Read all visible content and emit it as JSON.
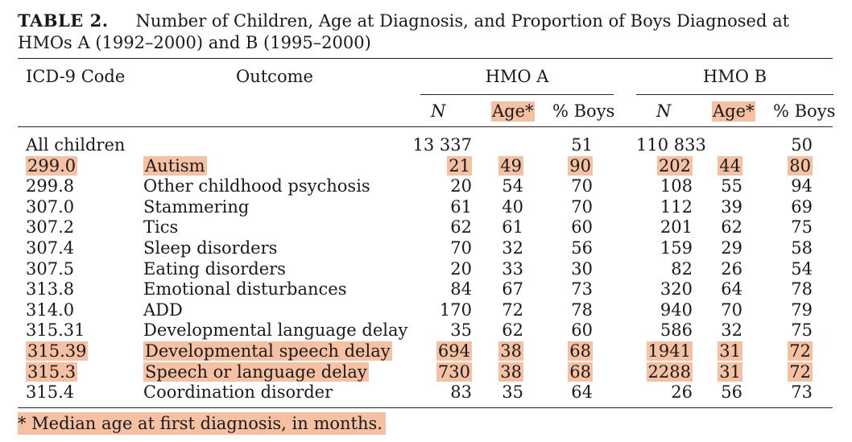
{
  "caption": {
    "label": "TABLE 2.",
    "text": "Number of Children, Age at Diagnosis, and Proportion of Boys Diagnosed at HMOs A (1992–2000) and B (1995–2000)"
  },
  "headers": {
    "code": "ICD-9 Code",
    "outcome": "Outcome",
    "hmo_a": "HMO A",
    "hmo_b": "HMO B",
    "n": "N",
    "age": "Age*",
    "boys": "% Boys"
  },
  "rows": [
    {
      "code": "All children",
      "outcome": "",
      "a_n": "13 337",
      "a_age": "",
      "a_boys": "51",
      "b_n": "110 833",
      "b_age": "",
      "b_boys": "50",
      "hl": false
    },
    {
      "code": "299.0",
      "outcome": "Autism",
      "a_n": "21",
      "a_age": "49",
      "a_boys": "90",
      "b_n": "202",
      "b_age": "44",
      "b_boys": "80",
      "hl": true
    },
    {
      "code": "299.8",
      "outcome": "Other childhood psychosis",
      "a_n": "20",
      "a_age": "54",
      "a_boys": "70",
      "b_n": "108",
      "b_age": "55",
      "b_boys": "94",
      "hl": false
    },
    {
      "code": "307.0",
      "outcome": "Stammering",
      "a_n": "61",
      "a_age": "40",
      "a_boys": "70",
      "b_n": "112",
      "b_age": "39",
      "b_boys": "69",
      "hl": false
    },
    {
      "code": "307.2",
      "outcome": "Tics",
      "a_n": "62",
      "a_age": "61",
      "a_boys": "60",
      "b_n": "201",
      "b_age": "62",
      "b_boys": "75",
      "hl": false
    },
    {
      "code": "307.4",
      "outcome": "Sleep disorders",
      "a_n": "70",
      "a_age": "32",
      "a_boys": "56",
      "b_n": "159",
      "b_age": "29",
      "b_boys": "58",
      "hl": false
    },
    {
      "code": "307.5",
      "outcome": "Eating disorders",
      "a_n": "20",
      "a_age": "33",
      "a_boys": "30",
      "b_n": "82",
      "b_age": "26",
      "b_boys": "54",
      "hl": false
    },
    {
      "code": "313.8",
      "outcome": "Emotional disturbances",
      "a_n": "84",
      "a_age": "67",
      "a_boys": "73",
      "b_n": "320",
      "b_age": "64",
      "b_boys": "78",
      "hl": false
    },
    {
      "code": "314.0",
      "outcome": "ADD",
      "a_n": "170",
      "a_age": "72",
      "a_boys": "78",
      "b_n": "940",
      "b_age": "70",
      "b_boys": "79",
      "hl": false
    },
    {
      "code": "315.31",
      "outcome": "Developmental language delay",
      "a_n": "35",
      "a_age": "62",
      "a_boys": "60",
      "b_n": "586",
      "b_age": "32",
      "b_boys": "75",
      "hl": false
    },
    {
      "code": "315.39",
      "outcome": "Developmental speech delay",
      "a_n": "694",
      "a_age": "38",
      "a_boys": "68",
      "b_n": "1941",
      "b_age": "31",
      "b_boys": "72",
      "hl": true
    },
    {
      "code": "315.3",
      "outcome": "Speech or language delay",
      "a_n": "730",
      "a_age": "38",
      "a_boys": "68",
      "b_n": "2288",
      "b_age": "31",
      "b_boys": "72",
      "hl": true
    },
    {
      "code": "315.4",
      "outcome": "Coordination disorder",
      "a_n": "83",
      "a_age": "35",
      "a_boys": "64",
      "b_n": "26",
      "b_age": "56",
      "b_boys": "73",
      "hl": false
    }
  ],
  "footnote": "* Median age at first diagnosis, in months.",
  "colors": {
    "highlight": "#f6c1a3"
  }
}
